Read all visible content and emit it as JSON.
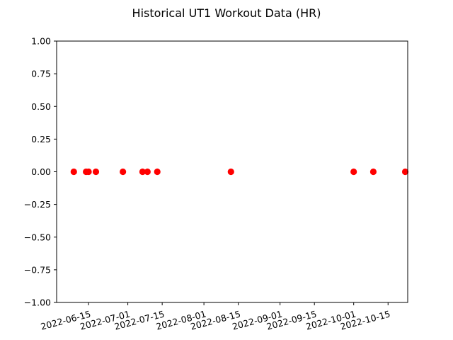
{
  "chart_data": {
    "type": "scatter",
    "title": "Historical UT1 Workout Data (HR)",
    "xlabel": "",
    "ylabel": "",
    "x_axis_type": "date",
    "xlim": [
      "2022-06-02",
      "2022-10-23"
    ],
    "ylim": [
      -1.0,
      1.0
    ],
    "x_ticks": [
      "2022-06-15",
      "2022-07-01",
      "2022-07-15",
      "2022-08-01",
      "2022-08-15",
      "2022-09-01",
      "2022-09-15",
      "2022-10-01",
      "2022-10-15"
    ],
    "y_ticks": [
      1.0,
      0.75,
      0.5,
      0.25,
      0.0,
      -0.25,
      -0.5,
      -0.75,
      -1.0
    ],
    "y_tick_labels": [
      "1.00",
      "0.75",
      "0.50",
      "0.25",
      "0.00",
      "−0.25",
      "−0.50",
      "−0.75",
      "−1.00"
    ],
    "x_tick_rotation_deg": 15,
    "grid": false,
    "legend": "none",
    "marker_color": "#ff0000",
    "points": [
      {
        "x": "2022-06-09",
        "y": 0.0
      },
      {
        "x": "2022-06-14",
        "y": 0.0
      },
      {
        "x": "2022-06-15",
        "y": 0.0
      },
      {
        "x": "2022-06-18",
        "y": 0.0
      },
      {
        "x": "2022-06-29",
        "y": 0.0
      },
      {
        "x": "2022-07-07",
        "y": 0.0
      },
      {
        "x": "2022-07-09",
        "y": 0.0
      },
      {
        "x": "2022-07-13",
        "y": 0.0
      },
      {
        "x": "2022-08-12",
        "y": 0.0
      },
      {
        "x": "2022-10-01",
        "y": 0.0
      },
      {
        "x": "2022-10-09",
        "y": 0.0
      },
      {
        "x": "2022-10-22",
        "y": 0.0
      }
    ]
  }
}
